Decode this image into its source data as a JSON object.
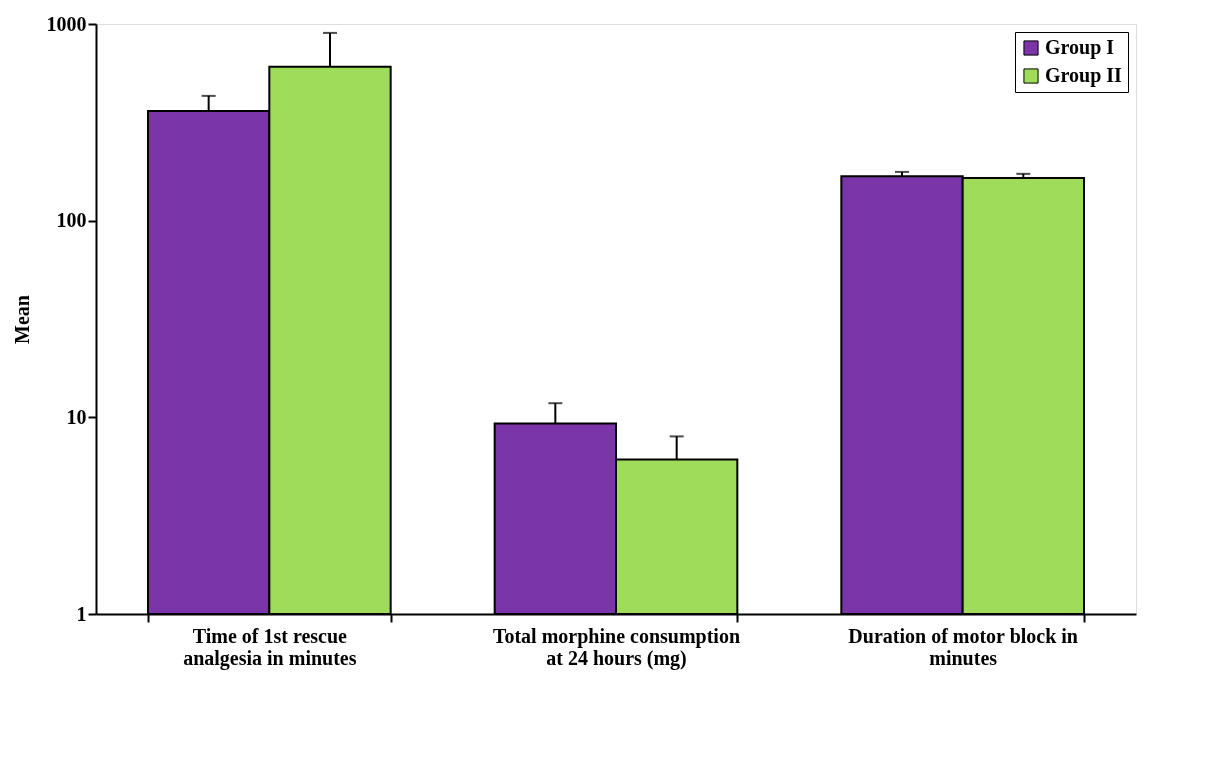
{
  "chart_data": {
    "type": "bar",
    "ylabel": "Mean",
    "categories": [
      "Time of 1st rescue analgesia in minutes",
      "Total morphine consumption at 24 hours (mg)",
      "Duration of motor block in minutes"
    ],
    "series": [
      {
        "name": "Group I",
        "color": "#7a35a8",
        "values": [
          361,
          9.3,
          168
        ],
        "errors": [
          70,
          2.5,
          9
        ]
      },
      {
        "name": "Group II",
        "color": "#9fdc5a",
        "values": [
          606,
          6.1,
          165
        ],
        "errors": [
          295,
          1.9,
          8
        ]
      }
    ],
    "log": true,
    "ylim": [
      1,
      1000
    ],
    "yticks": [
      1,
      10,
      100,
      1000
    ],
    "grid": false,
    "legend": "top right"
  }
}
